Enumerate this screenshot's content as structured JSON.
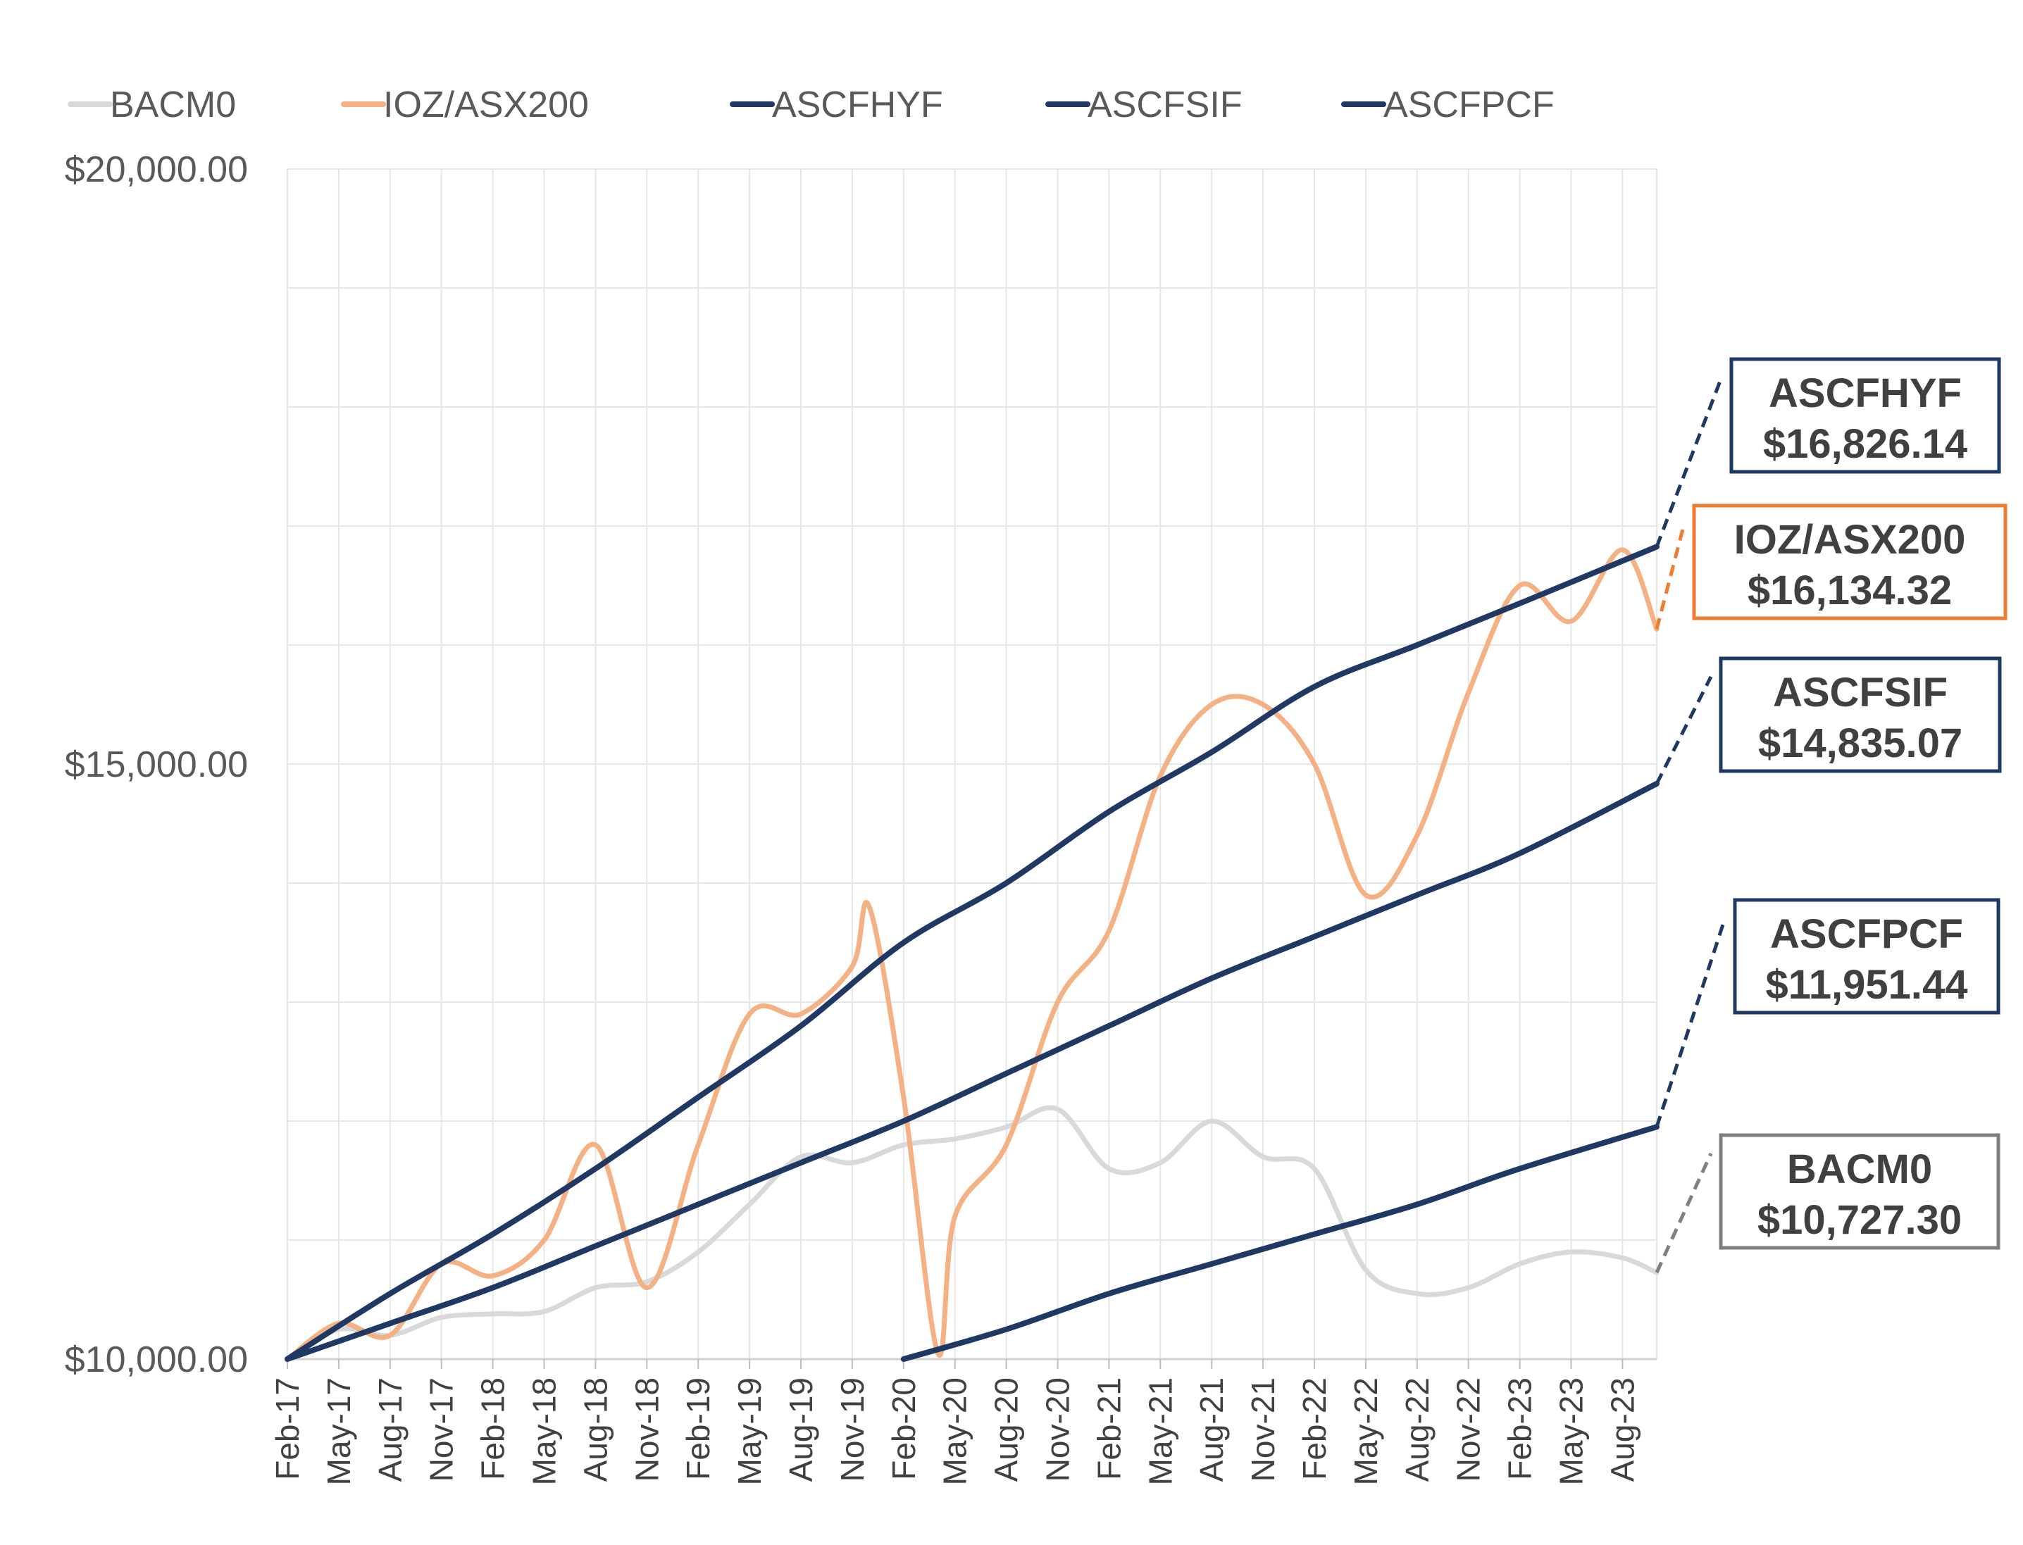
{
  "chart_data": {
    "type": "line",
    "title": "",
    "xlabel": "",
    "ylabel": "",
    "ylim": [
      10000,
      20000
    ],
    "y_ticks": [
      "$20,000.00",
      "$15,000.00",
      "$10,000.00"
    ],
    "y_tick_values": [
      20000,
      15000,
      10000
    ],
    "x_tick_labels": [
      "Feb-17",
      "May-17",
      "Aug-17",
      "Nov-17",
      "Feb-18",
      "May-18",
      "Aug-18",
      "Nov-18",
      "Feb-19",
      "May-19",
      "Aug-19",
      "Nov-19",
      "Feb-20",
      "May-20",
      "Aug-20",
      "Nov-20",
      "Feb-21",
      "May-21",
      "Aug-21",
      "Nov-21",
      "Feb-22",
      "May-22",
      "Aug-22",
      "Nov-22",
      "Feb-23",
      "May-23",
      "Aug-23"
    ],
    "grid": true,
    "legend": "top",
    "series": [
      {
        "name": "BACM0",
        "color": "#d9d9d9",
        "x": [
          "Feb-17",
          "May-17",
          "Aug-17",
          "Nov-17",
          "Feb-18",
          "May-18",
          "Aug-18",
          "Nov-18",
          "Feb-19",
          "May-19",
          "Aug-19",
          "Nov-19",
          "Feb-20",
          "May-20",
          "Aug-20",
          "Nov-20",
          "Feb-21",
          "May-21",
          "Aug-21",
          "Nov-21",
          "Feb-22",
          "May-22",
          "Aug-22",
          "Nov-22",
          "Feb-23",
          "May-23",
          "Aug-23",
          "Oct-23"
        ],
        "values": [
          10000,
          10250,
          10200,
          10350,
          10380,
          10400,
          10600,
          10650,
          10900,
          11300,
          11700,
          11650,
          11800,
          11850,
          11950,
          12100,
          11600,
          11650,
          12000,
          11700,
          11600,
          10750,
          10550,
          10600,
          10800,
          10900,
          10850,
          10727.3
        ]
      },
      {
        "name": "IOZ/ASX200",
        "color": "#f4b183",
        "x": [
          "Feb-17",
          "May-17",
          "Aug-17",
          "Nov-17",
          "Feb-18",
          "May-18",
          "Aug-18",
          "Nov-18",
          "Feb-19",
          "May-19",
          "Aug-19",
          "Nov-19",
          "Dec-19",
          "Feb-20",
          "Apr-20",
          "May-20",
          "Aug-20",
          "Nov-20",
          "Feb-21",
          "May-21",
          "Aug-21",
          "Nov-21",
          "Feb-22",
          "May-22",
          "Aug-22",
          "Nov-22",
          "Feb-23",
          "May-23",
          "Aug-23",
          "Oct-23"
        ],
        "values": [
          10000,
          10300,
          10200,
          10800,
          10700,
          11000,
          11800,
          10600,
          11800,
          12900,
          12900,
          13300,
          13800,
          12200,
          10050,
          11200,
          11800,
          13000,
          13600,
          14900,
          15500,
          15500,
          15000,
          13900,
          14400,
          15600,
          16500,
          16200,
          16800,
          16134.32
        ]
      },
      {
        "name": "ASCFHYF",
        "color": "#203864",
        "x": [
          "Feb-17",
          "Aug-17",
          "Feb-18",
          "Aug-18",
          "Feb-19",
          "Aug-19",
          "Feb-20",
          "Aug-20",
          "Feb-21",
          "Aug-21",
          "Feb-22",
          "Aug-22",
          "Feb-23",
          "Oct-23"
        ],
        "values": [
          10000,
          10550,
          11050,
          11600,
          12200,
          12800,
          13500,
          14000,
          14600,
          15100,
          15650,
          16000,
          16350,
          16826.14
        ]
      },
      {
        "name": "ASCFSIF",
        "color": "#203864",
        "x": [
          "Feb-17",
          "Aug-17",
          "Feb-18",
          "Aug-18",
          "Feb-19",
          "Aug-19",
          "Feb-20",
          "Aug-20",
          "Feb-21",
          "Aug-21",
          "Feb-22",
          "Aug-22",
          "Feb-23",
          "Oct-23"
        ],
        "values": [
          10000,
          10300,
          10600,
          10950,
          11300,
          11650,
          12000,
          12400,
          12800,
          13200,
          13550,
          13900,
          14250,
          14835.07
        ]
      },
      {
        "name": "ASCFPCF",
        "color": "#203864",
        "x": [
          "Feb-20",
          "Aug-20",
          "Feb-21",
          "Aug-21",
          "Feb-22",
          "Aug-22",
          "Feb-23",
          "Oct-23"
        ],
        "values": [
          10000,
          10250,
          10550,
          10800,
          11050,
          11300,
          11600,
          11951.44
        ]
      }
    ],
    "callouts": [
      {
        "name": "ASCFHYF",
        "value": "$16,826.14",
        "border": "#203864",
        "line": "#203864"
      },
      {
        "name": "IOZ/ASX200",
        "value": "$16,134.32",
        "border": "#ed7d31",
        "line": "#ed7d31"
      },
      {
        "name": "ASCFSIF",
        "value": "$14,835.07",
        "border": "#203864",
        "line": "#203864"
      },
      {
        "name": "ASCFPCF",
        "value": "$11,951.44",
        "border": "#203864",
        "line": "#203864"
      },
      {
        "name": "BACM0",
        "value": "$10,727.30",
        "border": "#7f7f7f",
        "line": "#7f7f7f"
      }
    ]
  }
}
